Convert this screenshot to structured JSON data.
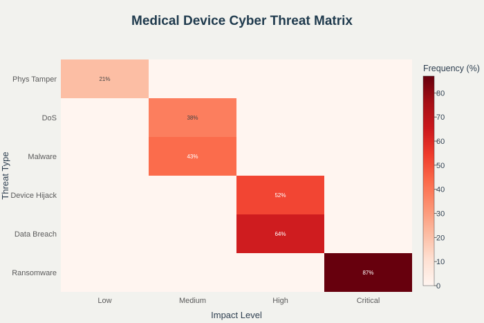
{
  "chart_data": {
    "type": "heatmap",
    "title": "Medical Device Cyber Threat Matrix",
    "xlabel": "Impact Level",
    "ylabel": "Threat Type",
    "x_categories": [
      "Low",
      "Medium",
      "High",
      "Critical"
    ],
    "y_categories": [
      "Phys Tamper",
      "DoS",
      "Malware",
      "Device Hijack",
      "Data Breach",
      "Ransomware"
    ],
    "values": [
      [
        21,
        0,
        0,
        0
      ],
      [
        0,
        38,
        0,
        0
      ],
      [
        0,
        43,
        0,
        0
      ],
      [
        0,
        0,
        52,
        0
      ],
      [
        0,
        0,
        64,
        0
      ],
      [
        0,
        0,
        0,
        87
      ]
    ],
    "cell_labels": [
      [
        "21%",
        "",
        "",
        ""
      ],
      [
        "",
        "38%",
        "",
        ""
      ],
      [
        "",
        "43%",
        "",
        ""
      ],
      [
        "",
        "",
        "52%",
        ""
      ],
      [
        "",
        "",
        "64%",
        ""
      ],
      [
        "",
        "",
        "",
        "87%"
      ]
    ],
    "colorscale": "Reds",
    "colorbar": {
      "title": "Frequency (%)",
      "range": [
        0,
        87
      ],
      "ticks": [
        "0",
        "10",
        "20",
        "30",
        "40",
        "50",
        "60",
        "70",
        "80"
      ]
    }
  }
}
